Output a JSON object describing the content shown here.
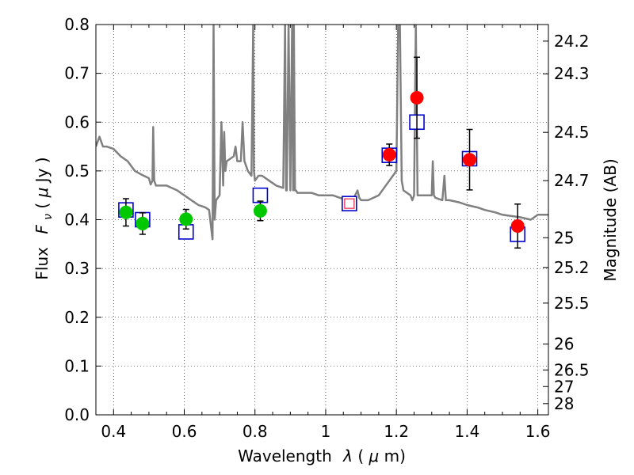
{
  "chart_data": {
    "type": "scatter",
    "xlabel": "Wavelength",
    "xlabel_symbol": "λ",
    "xlabel_unit_open": " (",
    "xlabel_unit_mu": "μ",
    "xlabel_unit_rest": "m)",
    "ylabel": "Flux",
    "ylabel_symbol": "F",
    "ylabel_subscript": "ν",
    "ylabel_unit_open": " ( ",
    "ylabel_unit_mu": "μ",
    "ylabel_unit_rest": "Jy )",
    "y2label": "Magnitude (AB)",
    "xlim": [
      0.35,
      1.63
    ],
    "ylim": [
      0.0,
      0.8
    ],
    "xticks": [
      0.4,
      0.6,
      0.8,
      1.0,
      1.2,
      1.4,
      1.6
    ],
    "xtick_labels": [
      "0.4",
      "0.6",
      "0.8",
      "1",
      "1.2",
      "1.4",
      "1.6"
    ],
    "yticks": [
      0.0,
      0.1,
      0.2,
      0.3,
      0.4,
      0.5,
      0.6,
      0.7,
      0.8
    ],
    "ytick_labels": [
      "0.0",
      "0.1",
      "0.2",
      "0.3",
      "0.4",
      "0.5",
      "0.6",
      "0.7",
      "0.8"
    ],
    "y2_tick_labels": [
      "24.2",
      "24.3",
      "24.5",
      "24.7",
      "25",
      "25.2",
      "25.5",
      "26",
      "26.5",
      "27",
      "28"
    ],
    "grid": true,
    "colors": {
      "model": "#808080",
      "green": "#00c800",
      "red": "#ff0000",
      "box": "#0000cc",
      "pinkbox": "#ee3355",
      "errorbar": "#000000"
    },
    "model_spectrum": {
      "name": "model SED",
      "x": [
        0.35,
        0.36,
        0.37,
        0.38,
        0.4,
        0.42,
        0.44,
        0.45,
        0.46,
        0.48,
        0.5,
        0.505,
        0.51,
        0.512,
        0.515,
        0.52,
        0.55,
        0.58,
        0.6,
        0.62,
        0.64,
        0.66,
        0.67,
        0.675,
        0.68,
        0.683,
        0.686,
        0.69,
        0.7,
        0.705,
        0.71,
        0.713,
        0.716,
        0.72,
        0.74,
        0.745,
        0.75,
        0.76,
        0.765,
        0.77,
        0.78,
        0.79,
        0.795,
        0.797,
        0.8,
        0.81,
        0.82,
        0.84,
        0.86,
        0.88,
        0.885,
        0.888,
        0.89,
        0.895,
        0.9,
        0.905,
        0.908,
        0.91,
        0.913,
        0.916,
        0.92,
        0.94,
        0.96,
        0.98,
        1.0,
        1.02,
        1.04,
        1.06,
        1.08,
        1.09,
        1.095,
        1.1,
        1.12,
        1.15,
        1.18,
        1.2,
        1.205,
        1.21,
        1.215,
        1.22,
        1.24,
        1.245,
        1.25,
        1.255,
        1.26,
        1.3,
        1.303,
        1.306,
        1.31,
        1.33,
        1.336,
        1.34,
        1.35,
        1.38,
        1.4,
        1.43,
        1.45,
        1.48,
        1.5,
        1.55,
        1.58,
        1.6,
        1.63
      ],
      "y": [
        0.55,
        0.57,
        0.55,
        0.55,
        0.545,
        0.53,
        0.52,
        0.51,
        0.5,
        0.492,
        0.485,
        0.472,
        0.48,
        0.59,
        0.48,
        0.47,
        0.47,
        0.46,
        0.45,
        0.44,
        0.43,
        0.425,
        0.42,
        0.39,
        0.36,
        0.8,
        0.4,
        0.44,
        0.45,
        0.6,
        0.47,
        0.58,
        0.5,
        0.52,
        0.53,
        0.55,
        0.52,
        0.52,
        0.6,
        0.52,
        0.5,
        0.49,
        0.8,
        0.5,
        0.48,
        0.49,
        0.49,
        0.48,
        0.47,
        0.465,
        0.8,
        0.46,
        0.46,
        0.8,
        0.46,
        0.8,
        0.46,
        0.8,
        0.46,
        0.46,
        0.455,
        0.455,
        0.455,
        0.45,
        0.45,
        0.45,
        0.445,
        0.44,
        0.445,
        0.46,
        0.445,
        0.44,
        0.44,
        0.45,
        0.48,
        0.5,
        0.8,
        0.8,
        0.48,
        0.46,
        0.45,
        0.44,
        0.45,
        0.8,
        0.45,
        0.45,
        0.52,
        0.45,
        0.445,
        0.44,
        0.49,
        0.44,
        0.44,
        0.435,
        0.43,
        0.425,
        0.42,
        0.415,
        0.41,
        0.405,
        0.4,
        0.41,
        0.41
      ]
    },
    "series": [
      {
        "name": "green points",
        "marker": "circle",
        "color": "green",
        "x": [
          0.435,
          0.482,
          0.605,
          0.815
        ],
        "y": [
          0.415,
          0.392,
          0.401,
          0.418
        ],
        "err": [
          0.028,
          0.022,
          0.02,
          0.02
        ]
      },
      {
        "name": "red points",
        "marker": "circle",
        "color": "red",
        "x": [
          1.18,
          1.258,
          1.407,
          1.543
        ],
        "y": [
          0.533,
          0.65,
          0.523,
          0.387
        ],
        "err": [
          0.022,
          0.083,
          0.062,
          0.045
        ]
      },
      {
        "name": "model photometry",
        "marker": "square",
        "color": "box",
        "x": [
          0.435,
          0.482,
          0.605,
          0.815,
          1.067,
          1.18,
          1.258,
          1.407,
          1.543
        ],
        "y": [
          0.42,
          0.4,
          0.375,
          0.45,
          0.433,
          0.532,
          0.6,
          0.525,
          0.37
        ]
      },
      {
        "name": "model photometry inner",
        "marker": "small-square",
        "color": "pinkbox",
        "x": [
          1.067
        ],
        "y": [
          0.433
        ]
      }
    ],
    "y2_ticks_flux": [
      0.766,
      0.699,
      0.579,
      0.48,
      0.363,
      0.302,
      0.229,
      0.145,
      0.092,
      0.058,
      0.023
    ]
  }
}
